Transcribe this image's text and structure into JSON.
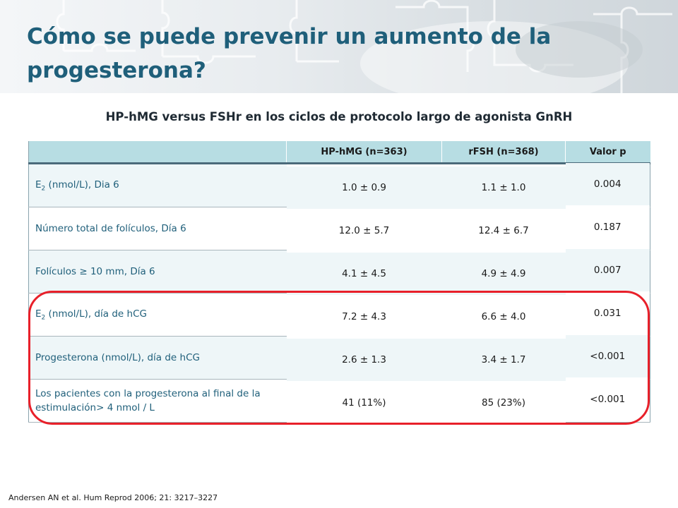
{
  "slide": {
    "title": "Cómo se puede prevenir un aumento de la progesterona?",
    "subtitle": "HP-hMG versus FSHr en los ciclos de protocolo largo de agonista GnRH",
    "reference": "Andersen AN et al. Hum Reprod 2006;  21:  3217–3227"
  },
  "table": {
    "headers": [
      "",
      "HP-hMG (n=363)",
      "rFSH (n=368)",
      "Valor p"
    ],
    "rows": [
      {
        "label_prefix": "E",
        "label_sub": "2",
        "label_rest": " (nmol/L), Dia 6",
        "label": "",
        "hmg": "1.0 ± 0.9",
        "rfsh": "1.1 ± 1.0",
        "p": "0.004"
      },
      {
        "label_prefix": "",
        "label_sub": "",
        "label_rest": "",
        "label": "Número total de folículos, Día 6",
        "hmg": "12.0  ± 5.7",
        "rfsh": "12.4 ± 6.7",
        "p": "0.187"
      },
      {
        "label_prefix": "",
        "label_sub": "",
        "label_rest": "",
        "label": "Folículos ≥ 10 mm, Día 6",
        "hmg": "4.1 ± 4.5",
        "rfsh": "4.9 ± 4.9",
        "p": "0.007"
      },
      {
        "label_prefix": "E",
        "label_sub": "2",
        "label_rest": " (nmol/L), día de hCG",
        "label": "",
        "hmg": "7.2 ± 4.3",
        "rfsh": "6.6 ± 4.0",
        "p": "0.031"
      },
      {
        "label_prefix": "",
        "label_sub": "",
        "label_rest": "",
        "label": "Progesterona (nmol/L), día de hCG",
        "hmg": "2.6 ± 1.3",
        "rfsh": "3.4 ± 1.7",
        "p": "<0.001"
      },
      {
        "label_prefix": "",
        "label_sub": "",
        "label_rest": "",
        "label": "Los pacientes con la progesterona al  final de la estimulación> 4 nmol / L",
        "hmg": "41 (11%)",
        "rfsh": "85 (23%)",
        "p": "<0.001"
      }
    ]
  },
  "colors": {
    "title": "#1f5f7a",
    "header_bg": "#b7dde3",
    "highlight": "#e8202a"
  }
}
